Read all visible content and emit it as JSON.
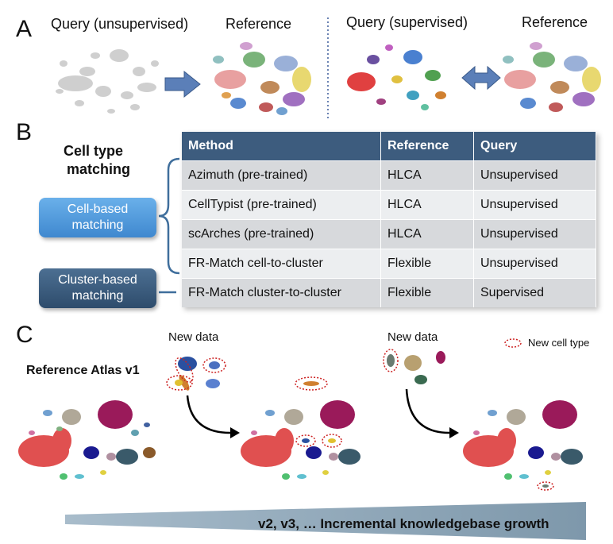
{
  "panel_a": {
    "letter": "A",
    "query_unsupervised": "Query (unsupervised)",
    "reference_left": "Reference",
    "query_supervised": "Query (supervised)",
    "reference_right": "Reference"
  },
  "panel_b": {
    "letter": "B",
    "title_line1": "Cell type",
    "title_line2": "matching",
    "cell_based_line1": "Cell-based",
    "cell_based_line2": "matching",
    "cluster_based_line1": "Cluster-based",
    "cluster_based_line2": "matching",
    "table": {
      "headers": [
        "Method",
        "Reference",
        "Query"
      ],
      "rows": [
        [
          "Azimuth (pre-trained)",
          "HLCA",
          "Unsupervised"
        ],
        [
          "CellTypist (pre-trained)",
          "HLCA",
          "Unsupervised"
        ],
        [
          "scArches (pre-trained)",
          "HLCA",
          "Unsupervised"
        ],
        [
          "FR-Match cell-to-cluster",
          "Flexible",
          "Unsupervised"
        ],
        [
          "FR-Match cluster-to-cluster",
          "Flexible",
          "Supervised"
        ]
      ]
    }
  },
  "panel_c": {
    "letter": "C",
    "atlas_label": "Reference Atlas v1",
    "new_data_1": "New data",
    "new_data_2": "New data",
    "legend_new_cell_type": "New cell type",
    "growth_label": "v2, v3, … Incremental knowledgebase growth"
  },
  "colors": {
    "table_header": "#3d5c7e",
    "cell_based_button": "#4a96dc",
    "cluster_based_button": "#3a5c7f",
    "arrow_fill": "#5b7fb8",
    "new_cell_outline": "#cc2222",
    "growth_wedge": "#8aa4b8"
  }
}
